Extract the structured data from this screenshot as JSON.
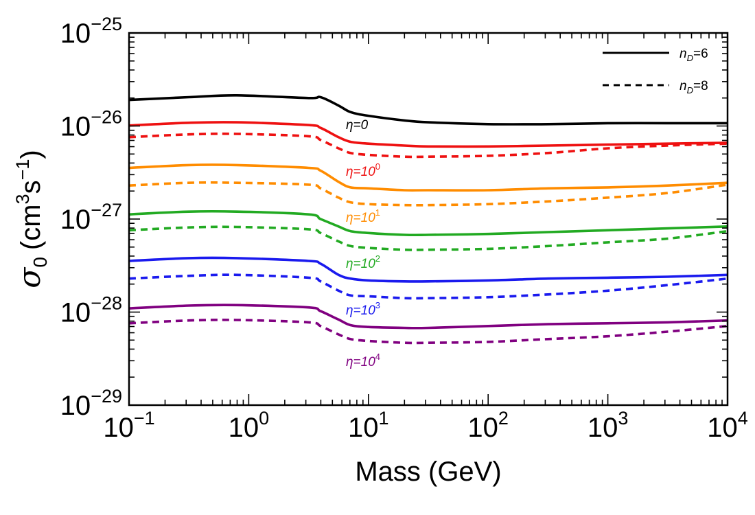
{
  "chart_data": {
    "type": "line",
    "xlabel": "Mass (GeV)",
    "ylabel_symbol": "σ",
    "ylabel_sub": "0",
    "ylabel_units": "(cm",
    "ylabel_units_mid": "s",
    "ylabel_units_end": ")",
    "ylabel_pow1": "3",
    "ylabel_pow2": "−1",
    "xscale": "log",
    "yscale": "log",
    "xlim_exp": [
      -1,
      4
    ],
    "ylim_exp": [
      -29,
      -25
    ],
    "x_ticks": [
      {
        "base": "10",
        "exp": "−1"
      },
      {
        "base": "10",
        "exp": "0"
      },
      {
        "base": "10",
        "exp": "1"
      },
      {
        "base": "10",
        "exp": "2"
      },
      {
        "base": "10",
        "exp": "3"
      },
      {
        "base": "10",
        "exp": "4"
      }
    ],
    "y_ticks": [
      {
        "base": "10",
        "exp": "−25"
      },
      {
        "base": "10",
        "exp": "−26"
      },
      {
        "base": "10",
        "exp": "−27"
      },
      {
        "base": "10",
        "exp": "−28"
      },
      {
        "base": "10",
        "exp": "−29"
      }
    ],
    "legend": {
      "position": "top-right",
      "entries": [
        {
          "label_main": "n",
          "label_sub": "D",
          "label_rest": "=6",
          "style": "solid"
        },
        {
          "label_main": "n",
          "label_sub": "D",
          "label_rest": "=8",
          "style": "dashed"
        }
      ]
    },
    "eta_labels": [
      {
        "main": "η=0",
        "sup": "",
        "color": "#000000"
      },
      {
        "main": "η=10",
        "sup": "0",
        "color": "#ee1111"
      },
      {
        "main": "η=10",
        "sup": "1",
        "color": "#ff8c00"
      },
      {
        "main": "η=10",
        "sup": "2",
        "color": "#22aa22"
      },
      {
        "main": "η=10",
        "sup": "3",
        "color": "#1a1aee"
      },
      {
        "main": "η=10",
        "sup": "4",
        "color": "#800080"
      }
    ],
    "series": [
      {
        "name": "eta=0, nD=6",
        "color": "#000000",
        "style": "solid",
        "x_log10": [
          -1.0,
          -0.5,
          -0.1,
          0.5,
          0.6,
          0.75,
          0.85,
          1.0,
          1.3,
          1.5,
          2.0,
          2.5,
          3.0,
          3.5,
          4.0
        ],
        "log10_sigma": [
          -25.72,
          -25.69,
          -25.67,
          -25.7,
          -25.69,
          -25.78,
          -25.85,
          -25.89,
          -25.94,
          -25.96,
          -25.98,
          -25.98,
          -25.97,
          -25.97,
          -25.97
        ]
      },
      {
        "name": "eta=10^0, nD=6",
        "color": "#ee1111",
        "style": "solid",
        "x_log10": [
          -1.0,
          -0.5,
          -0.1,
          0.5,
          0.6,
          0.75,
          0.85,
          1.0,
          1.3,
          1.5,
          2.0,
          2.5,
          3.0,
          3.5,
          4.0
        ],
        "log10_sigma": [
          -25.995,
          -25.965,
          -25.96,
          -25.99,
          -26.02,
          -26.12,
          -26.17,
          -26.19,
          -26.21,
          -26.22,
          -26.22,
          -26.21,
          -26.2,
          -26.19,
          -26.18
        ]
      },
      {
        "name": "eta=10^0, nD=8",
        "color": "#ee1111",
        "style": "dashed",
        "x_log10": [
          -1.0,
          -0.5,
          -0.1,
          0.5,
          0.6,
          0.75,
          0.85,
          1.0,
          1.3,
          1.5,
          2.0,
          2.5,
          3.0,
          3.5,
          4.0
        ],
        "log10_sigma": [
          -26.12,
          -26.09,
          -26.085,
          -26.11,
          -26.15,
          -26.24,
          -26.29,
          -26.31,
          -26.33,
          -26.33,
          -26.32,
          -26.29,
          -26.24,
          -26.21,
          -26.19
        ]
      },
      {
        "name": "eta=10^1, nD=6",
        "color": "#ff8c00",
        "style": "solid",
        "x_log10": [
          -1.0,
          -0.5,
          -0.1,
          0.5,
          0.6,
          0.75,
          0.85,
          1.0,
          1.3,
          1.5,
          2.0,
          2.5,
          3.0,
          3.5,
          4.0
        ],
        "log10_sigma": [
          -26.45,
          -26.42,
          -26.42,
          -26.45,
          -26.48,
          -26.6,
          -26.66,
          -26.67,
          -26.69,
          -26.69,
          -26.69,
          -26.67,
          -26.66,
          -26.64,
          -26.61
        ]
      },
      {
        "name": "eta=10^1, nD=8",
        "color": "#ff8c00",
        "style": "dashed",
        "x_log10": [
          -1.0,
          -0.5,
          -0.1,
          0.5,
          0.6,
          0.75,
          0.85,
          1.0,
          1.3,
          1.5,
          2.0,
          2.5,
          3.0,
          3.5,
          4.0
        ],
        "log10_sigma": [
          -26.64,
          -26.61,
          -26.61,
          -26.63,
          -26.67,
          -26.77,
          -26.82,
          -26.84,
          -26.85,
          -26.85,
          -26.84,
          -26.81,
          -26.77,
          -26.72,
          -26.63
        ]
      },
      {
        "name": "eta=10^2, nD=6",
        "color": "#22aa22",
        "style": "solid",
        "x_log10": [
          -1.0,
          -0.5,
          -0.1,
          0.5,
          0.6,
          0.75,
          0.85,
          1.0,
          1.3,
          1.5,
          2.0,
          2.5,
          3.0,
          3.5,
          4.0
        ],
        "log10_sigma": [
          -26.95,
          -26.92,
          -26.92,
          -26.95,
          -27.0,
          -27.08,
          -27.13,
          -27.15,
          -27.17,
          -27.17,
          -27.16,
          -27.14,
          -27.12,
          -27.1,
          -27.08
        ]
      },
      {
        "name": "eta=10^2, nD=8",
        "color": "#22aa22",
        "style": "dashed",
        "x_log10": [
          -1.0,
          -0.5,
          -0.1,
          0.5,
          0.6,
          0.75,
          0.85,
          1.0,
          1.3,
          1.5,
          2.0,
          2.5,
          3.0,
          3.5,
          4.0
        ],
        "log10_sigma": [
          -27.12,
          -27.09,
          -27.085,
          -27.11,
          -27.15,
          -27.24,
          -27.29,
          -27.31,
          -27.33,
          -27.33,
          -27.32,
          -27.29,
          -27.25,
          -27.21,
          -27.13
        ]
      },
      {
        "name": "eta=10^3, nD=6",
        "color": "#1a1aee",
        "style": "solid",
        "x_log10": [
          -1.0,
          -0.5,
          -0.1,
          0.5,
          0.6,
          0.75,
          0.85,
          1.0,
          1.3,
          1.5,
          2.0,
          2.5,
          3.0,
          3.5,
          4.0
        ],
        "log10_sigma": [
          -27.45,
          -27.42,
          -27.42,
          -27.45,
          -27.48,
          -27.6,
          -27.64,
          -27.66,
          -27.67,
          -27.67,
          -27.66,
          -27.64,
          -27.63,
          -27.62,
          -27.6
        ]
      },
      {
        "name": "eta=10^3, nD=8",
        "color": "#1a1aee",
        "style": "dashed",
        "x_log10": [
          -1.0,
          -0.5,
          -0.1,
          0.5,
          0.6,
          0.75,
          0.85,
          1.0,
          1.3,
          1.5,
          2.0,
          2.5,
          3.0,
          3.5,
          4.0
        ],
        "log10_sigma": [
          -27.64,
          -27.61,
          -27.6,
          -27.63,
          -27.67,
          -27.77,
          -27.82,
          -27.83,
          -27.85,
          -27.85,
          -27.84,
          -27.81,
          -27.77,
          -27.71,
          -27.64
        ]
      },
      {
        "name": "eta=10^4, nD=6",
        "color": "#800080",
        "style": "solid",
        "x_log10": [
          -1.0,
          -0.5,
          -0.1,
          0.5,
          0.6,
          0.75,
          0.85,
          1.0,
          1.3,
          1.5,
          2.0,
          2.5,
          3.0,
          3.5,
          4.0
        ],
        "log10_sigma": [
          -27.96,
          -27.93,
          -27.925,
          -27.95,
          -27.99,
          -28.08,
          -28.14,
          -28.16,
          -28.17,
          -28.17,
          -28.15,
          -28.13,
          -28.12,
          -28.11,
          -28.09
        ]
      },
      {
        "name": "eta=10^4, nD=8",
        "color": "#800080",
        "style": "dashed",
        "x_log10": [
          -1.0,
          -0.5,
          -0.1,
          0.5,
          0.6,
          0.75,
          0.85,
          1.0,
          1.3,
          1.5,
          2.0,
          2.5,
          3.0,
          3.5,
          4.0
        ],
        "log10_sigma": [
          -28.12,
          -28.09,
          -28.085,
          -28.11,
          -28.15,
          -28.24,
          -28.29,
          -28.31,
          -28.33,
          -28.33,
          -28.32,
          -28.29,
          -28.26,
          -28.21,
          -28.15
        ]
      }
    ]
  }
}
